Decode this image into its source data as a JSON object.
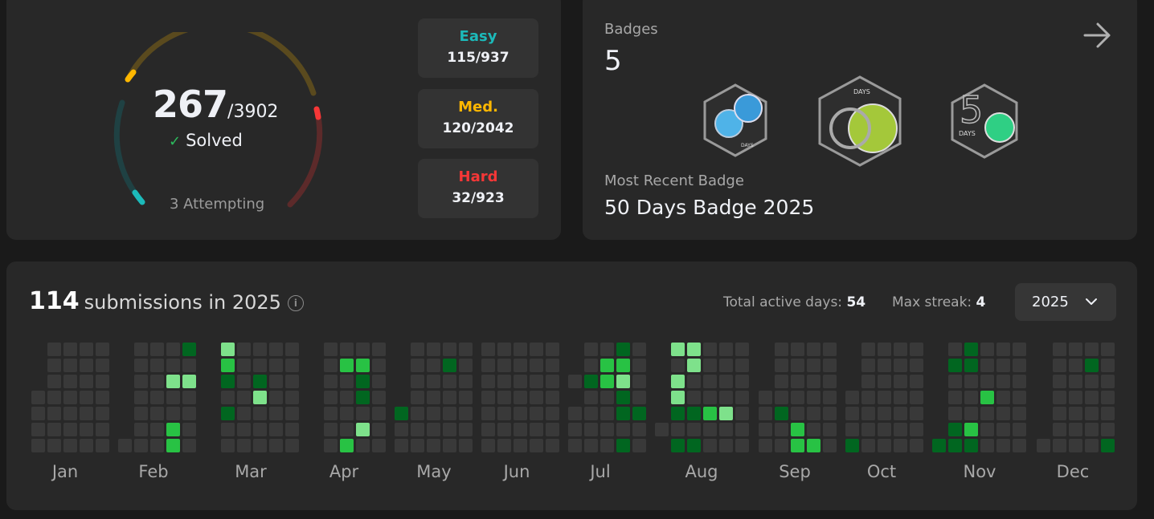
{
  "progress": {
    "solved": "267",
    "total": "/3902",
    "solved_label": "Solved",
    "attempting": "3 Attempting",
    "difficulties": [
      {
        "label": "Easy",
        "value": "115/937",
        "color": "#1cbaba"
      },
      {
        "label": "Med.",
        "value": "120/2042",
        "color": "#ffb700"
      },
      {
        "label": "Hard",
        "value": "32/923",
        "color": "#f63737"
      }
    ]
  },
  "badges": {
    "label": "Badges",
    "count": "5",
    "recent_label": "Most Recent Badge",
    "recent_name": "50 Days Badge 2025",
    "badge_texts": [
      "DAYS",
      "DAYS",
      "DAYS"
    ],
    "badge_numbers": [
      "",
      "",
      "5"
    ]
  },
  "calendar": {
    "count": "114",
    "title_rest": "submissions in 2025",
    "info_icon": "i",
    "active_days_label": "Total active days:",
    "active_days": "54",
    "max_streak_label": "Max streak:",
    "max_streak": "4",
    "year": "2025",
    "months": [
      "Jan",
      "Feb",
      "Mar",
      "Apr",
      "May",
      "Jun",
      "Jul",
      "Aug",
      "Sep",
      "Oct",
      "Nov",
      "Dec"
    ],
    "colors": {
      "empty": "#393939",
      "l1": "#016620",
      "l2": "#28c244",
      "l3": "#7ee18b"
    }
  }
}
